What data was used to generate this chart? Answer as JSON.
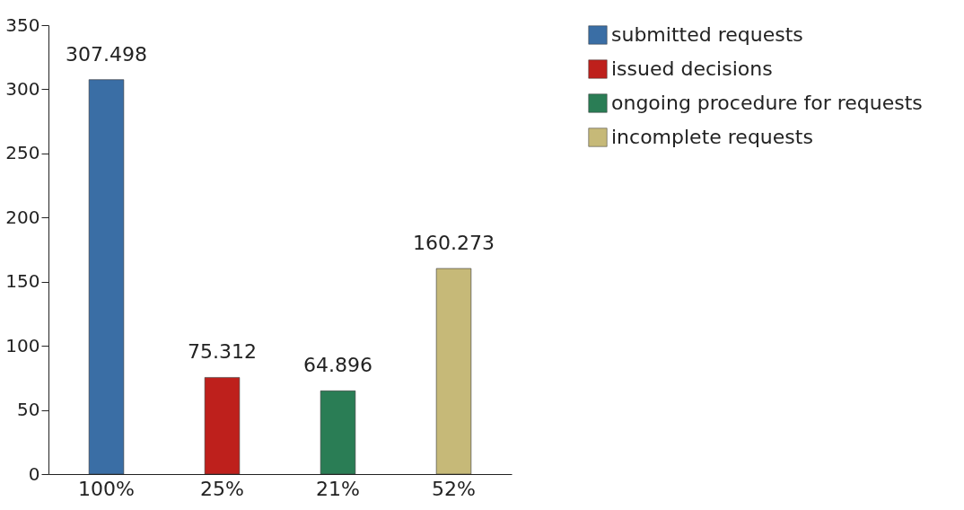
{
  "chart_data": {
    "type": "bar",
    "categories": [
      "100%",
      "25%",
      "21%",
      "52%"
    ],
    "series": [
      {
        "name": "submitted requests",
        "color": "#3a6ea5",
        "values": [
          307.498,
          null,
          null,
          null
        ]
      },
      {
        "name": "issued decisions",
        "color": "#be201c",
        "values": [
          null,
          75.312,
          null,
          null
        ]
      },
      {
        "name": "ongoing procedure for requests",
        "color": "#2a7d55",
        "values": [
          null,
          null,
          64.896,
          null
        ]
      },
      {
        "name": "incomplete requests",
        "color": "#c6b978",
        "values": [
          null,
          null,
          null,
          160.273
        ]
      }
    ],
    "ylim": [
      0,
      350
    ],
    "yticks": [
      0,
      50,
      100,
      150,
      200,
      250,
      300,
      350
    ],
    "grid": false,
    "legend": "right",
    "data_labels": true
  }
}
